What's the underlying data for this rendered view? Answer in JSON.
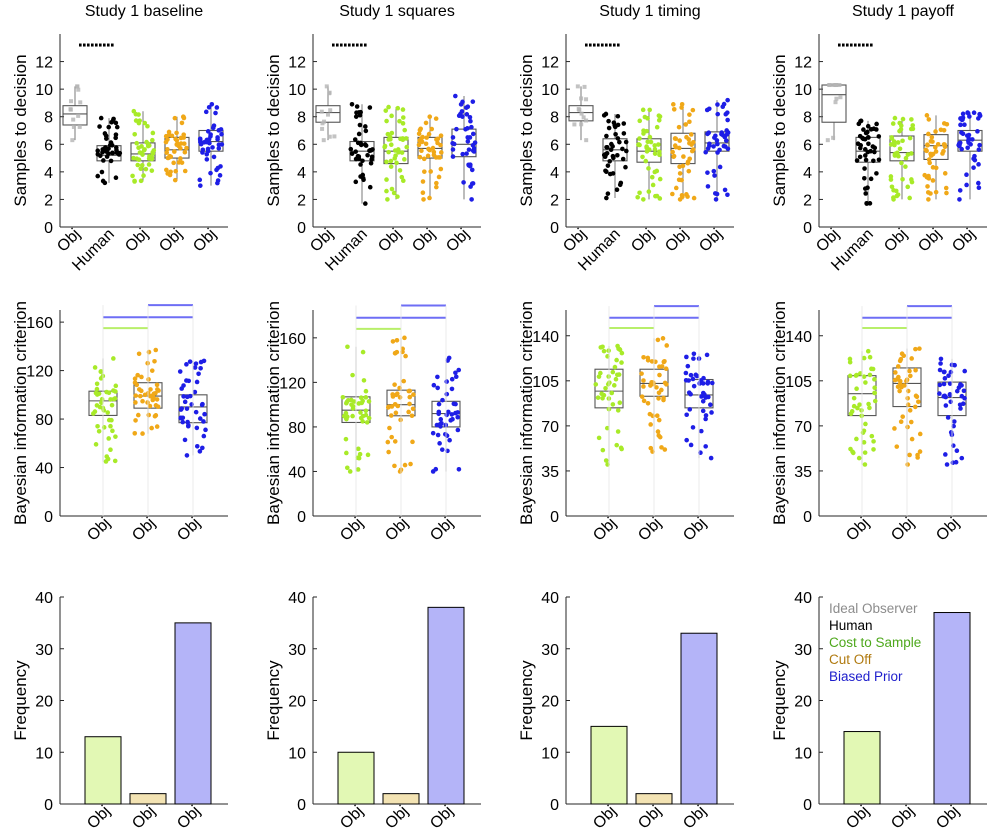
{
  "figure": {
    "legend": [
      {
        "label": "Ideal Observer",
        "color": "#8c8c8c"
      },
      {
        "label": "Human",
        "color": "#000000"
      },
      {
        "label": "Cost to Sample",
        "color": "#4ea81c"
      },
      {
        "label": "Cut Off",
        "color": "#b07a10"
      },
      {
        "label": "Biased Prior",
        "color": "#1e1ecc"
      }
    ],
    "colors": {
      "ideal": "#b4b4b4",
      "human": "#000000",
      "cost": "#a8ea28",
      "cutoff": "#f0a818",
      "prior": "#1e1ee6",
      "bar_cost": "#e2f8b4",
      "bar_cutoff": "#f3e3b3",
      "bar_prior": "#b4b4f8",
      "sig_green": "#b8ef6a",
      "sig_blue": "#6e6ef5"
    }
  },
  "chart_data": [
    {
      "study": "Study 1 baseline",
      "samples": {
        "type": "box-scatter",
        "title": "Study 1 baseline",
        "ylabel": "Samples to decision",
        "ylim": [
          0,
          14
        ],
        "yticks": [
          0,
          2,
          4,
          6,
          8,
          10,
          12
        ],
        "categories": [
          "Obj",
          "Human",
          "Obj",
          "Obj",
          "Obj"
        ],
        "boxes": [
          {
            "min": 6.3,
            "q1": 7.4,
            "median": 8.2,
            "q3": 8.8,
            "max": 10.2
          },
          {
            "min": 3.2,
            "q1": 4.8,
            "median": 5.2,
            "q3": 5.9,
            "max": 7.9
          },
          {
            "min": 3.3,
            "q1": 4.8,
            "median": 5.3,
            "q3": 6.1,
            "max": 8.4
          },
          {
            "min": 3.4,
            "q1": 5.0,
            "median": 5.6,
            "q3": 6.5,
            "max": 8.0
          },
          {
            "min": 3.0,
            "q1": 5.5,
            "median": 6.2,
            "q3": 7.0,
            "max": 8.9
          }
        ],
        "ideal_marker_value": 13.2
      },
      "bic": {
        "type": "box-scatter",
        "ylabel": "Bayesian information criterion",
        "ylim": [
          0,
          170
        ],
        "yticks": [
          0,
          40,
          80,
          120,
          160
        ],
        "categories": [
          "Obj",
          "Obj",
          "Obj"
        ],
        "boxes": [
          {
            "min": 45,
            "q1": 83,
            "median": 95,
            "q3": 103,
            "max": 130
          },
          {
            "min": 68,
            "q1": 89,
            "median": 99,
            "q3": 110,
            "max": 137
          },
          {
            "min": 50,
            "q1": 77,
            "median": 90,
            "q3": 100,
            "max": 128
          }
        ],
        "sig_green_value": 155,
        "sig_blue_values": [
          174,
          164
        ]
      },
      "freq": {
        "type": "bar",
        "ylabel": "Frequency",
        "ylim": [
          0,
          40
        ],
        "yticks": [
          0,
          10,
          20,
          30,
          40
        ],
        "categories": [
          "Obj",
          "Obj",
          "Obj"
        ],
        "values": [
          13,
          2,
          35
        ]
      }
    },
    {
      "study": "Study 1 squares",
      "samples": {
        "type": "box-scatter",
        "title": "Study 1 squares",
        "ylabel": "Samples to decision",
        "ylim": [
          0,
          14
        ],
        "yticks": [
          0,
          2,
          4,
          6,
          8,
          10,
          12
        ],
        "categories": [
          "Obj",
          "Human",
          "Obj",
          "Obj",
          "Obj"
        ],
        "boxes": [
          {
            "min": 6.3,
            "q1": 7.6,
            "median": 8.3,
            "q3": 8.8,
            "max": 10.2
          },
          {
            "min": 1.7,
            "q1": 4.8,
            "median": 5.5,
            "q3": 6.2,
            "max": 8.9
          },
          {
            "min": 2.0,
            "q1": 4.6,
            "median": 5.5,
            "q3": 6.5,
            "max": 8.7
          },
          {
            "min": 2.0,
            "q1": 5.0,
            "median": 5.7,
            "q3": 6.5,
            "max": 8.0
          },
          {
            "min": 2.0,
            "q1": 5.1,
            "median": 6.0,
            "q3": 7.1,
            "max": 9.5
          }
        ],
        "ideal_marker_value": 13.2
      },
      "bic": {
        "type": "box-scatter",
        "ylabel": "Bayesian information criterion",
        "ylim": [
          0,
          185
        ],
        "yticks": [
          0,
          40,
          80,
          120,
          160
        ],
        "categories": [
          "Obj",
          "Obj",
          "Obj"
        ],
        "boxes": [
          {
            "min": 40,
            "q1": 84,
            "median": 95,
            "q3": 107,
            "max": 152
          },
          {
            "min": 40,
            "q1": 90,
            "median": 100,
            "q3": 113,
            "max": 160
          },
          {
            "min": 40,
            "q1": 80,
            "median": 92,
            "q3": 103,
            "max": 142
          }
        ],
        "sig_green_value": 168,
        "sig_blue_values": [
          189,
          178
        ]
      },
      "freq": {
        "type": "bar",
        "ylabel": "Frequency",
        "ylim": [
          0,
          40
        ],
        "yticks": [
          0,
          10,
          20,
          30,
          40
        ],
        "categories": [
          "Obj",
          "Obj",
          "Obj"
        ],
        "values": [
          10,
          2,
          38
        ]
      }
    },
    {
      "study": "Study 1 timing",
      "samples": {
        "type": "box-scatter",
        "title": "Study 1 timing",
        "ylabel": "Samples to decision",
        "ylim": [
          0,
          14
        ],
        "yticks": [
          0,
          2,
          4,
          6,
          8,
          10,
          12
        ],
        "categories": [
          "Obj",
          "Human",
          "Obj",
          "Obj",
          "Obj"
        ],
        "boxes": [
          {
            "min": 6.3,
            "q1": 7.7,
            "median": 8.3,
            "q3": 8.8,
            "max": 10.2
          },
          {
            "min": 2.1,
            "q1": 4.8,
            "median": 5.6,
            "q3": 6.4,
            "max": 8.2
          },
          {
            "min": 2.0,
            "q1": 4.7,
            "median": 5.5,
            "q3": 6.4,
            "max": 8.5
          },
          {
            "min": 2.0,
            "q1": 4.6,
            "median": 5.7,
            "q3": 6.8,
            "max": 8.9
          },
          {
            "min": 2.0,
            "q1": 5.5,
            "median": 6.1,
            "q3": 6.9,
            "max": 9.2
          }
        ],
        "ideal_marker_value": 13.2
      },
      "bic": {
        "type": "box-scatter",
        "ylabel": "Bayesian information criterion",
        "ylim": [
          0,
          160
        ],
        "yticks": [
          0,
          35,
          70,
          105,
          140
        ],
        "categories": [
          "Obj",
          "Obj",
          "Obj"
        ],
        "boxes": [
          {
            "min": 40,
            "q1": 84,
            "median": 97,
            "q3": 114,
            "max": 132
          },
          {
            "min": 50,
            "q1": 93,
            "median": 103,
            "q3": 114,
            "max": 138
          },
          {
            "min": 45,
            "q1": 84,
            "median": 94,
            "q3": 106,
            "max": 126
          }
        ],
        "sig_green_value": 146,
        "sig_blue_values": [
          163,
          154
        ]
      },
      "freq": {
        "type": "bar",
        "ylabel": "Frequency",
        "ylim": [
          0,
          40
        ],
        "yticks": [
          0,
          10,
          20,
          30,
          40
        ],
        "categories": [
          "Obj",
          "Obj",
          "Obj"
        ],
        "values": [
          15,
          2,
          33
        ]
      }
    },
    {
      "study": "Study 1 payoff",
      "samples": {
        "type": "box-scatter",
        "title": "Study 1 payoff",
        "ylabel": "Samples to decision",
        "ylim": [
          0,
          14
        ],
        "yticks": [
          0,
          2,
          4,
          6,
          8,
          10,
          12
        ],
        "categories": [
          "Obj",
          "Human",
          "Obj",
          "Obj",
          "Obj"
        ],
        "boxes": [
          {
            "min": 6.3,
            "q1": 7.6,
            "median": 9.6,
            "q3": 10.3,
            "max": 10.3
          },
          {
            "min": 1.7,
            "q1": 4.7,
            "median": 5.5,
            "q3": 6.5,
            "max": 7.7
          },
          {
            "min": 2.0,
            "q1": 4.8,
            "median": 5.4,
            "q3": 6.6,
            "max": 7.9
          },
          {
            "min": 2.0,
            "q1": 4.9,
            "median": 5.9,
            "q3": 6.7,
            "max": 8.1
          },
          {
            "min": 2.0,
            "q1": 5.5,
            "median": 6.3,
            "q3": 7.0,
            "max": 8.3
          }
        ],
        "ideal_marker_value": 13.2
      },
      "bic": {
        "type": "box-scatter",
        "ylabel": "Bayesian information criterion",
        "ylim": [
          0,
          160
        ],
        "yticks": [
          0,
          35,
          70,
          105,
          140
        ],
        "categories": [
          "Obj",
          "Obj",
          "Obj"
        ],
        "boxes": [
          {
            "min": 40,
            "q1": 78,
            "median": 95,
            "q3": 109,
            "max": 128
          },
          {
            "min": 40,
            "q1": 85,
            "median": 103,
            "q3": 115,
            "max": 130
          },
          {
            "min": 40,
            "q1": 78,
            "median": 92,
            "q3": 104,
            "max": 122
          }
        ],
        "sig_green_value": 146,
        "sig_blue_values": [
          163,
          154
        ]
      },
      "freq": {
        "type": "bar",
        "ylabel": "Frequency",
        "ylim": [
          0,
          40
        ],
        "yticks": [
          0,
          10,
          20,
          30,
          40
        ],
        "categories": [
          "Obj",
          "Obj",
          "Obj"
        ],
        "values": [
          14,
          0,
          37
        ]
      }
    }
  ]
}
